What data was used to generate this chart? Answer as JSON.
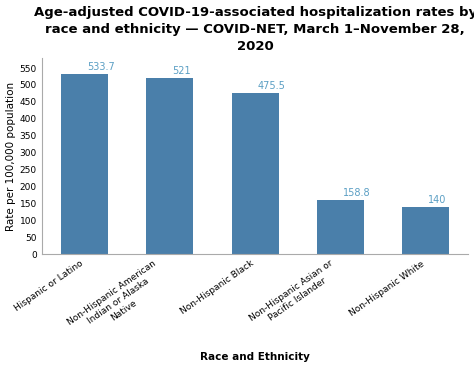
{
  "title": "Age-adjusted COVID-19-associated hospitalization rates by\nrace and ethnicity — COVID-NET, March 1–November 28,\n2020",
  "categories": [
    "Hispanic or Latino",
    "Non-Hispanic American\nIndian or Alaska\nNative",
    "Non-Hispanic Black",
    "Non-Hispanic Asian or\nPacific Islander",
    "Non-Hispanic White"
  ],
  "values": [
    533.7,
    521,
    475.5,
    158.8,
    140
  ],
  "bar_color": "#4a7faa",
  "label_color": "#5b9fc4",
  "ylabel": "Rate per 100,000 population",
  "xlabel": "Race and Ethnicity",
  "ylim": [
    0,
    580
  ],
  "yticks": [
    0,
    50,
    100,
    150,
    200,
    250,
    300,
    350,
    400,
    450,
    500,
    550
  ],
  "title_fontsize": 9.5,
  "axis_label_fontsize": 7.5,
  "tick_label_fontsize": 6.5,
  "value_label_fontsize": 7,
  "background_color": "#ffffff"
}
